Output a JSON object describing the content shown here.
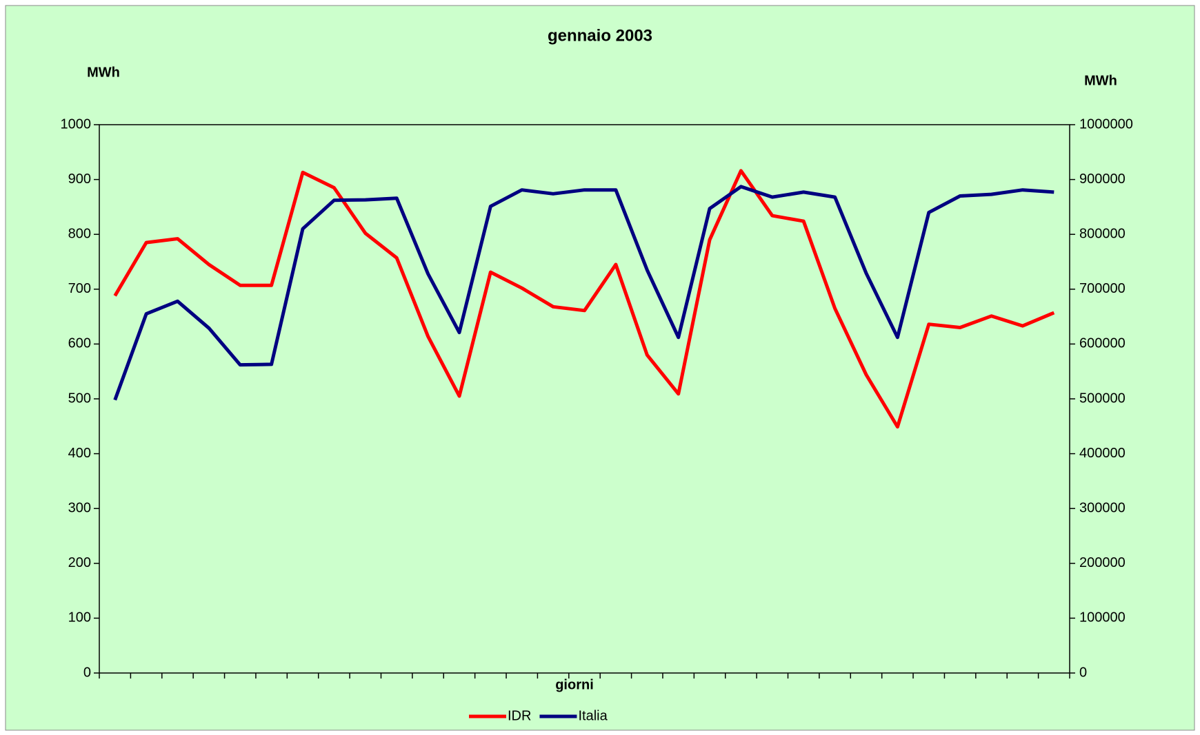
{
  "chart_data": {
    "type": "line",
    "title": "gennaio 2003",
    "ylabel": "MWh",
    "y2label": "MWh",
    "xlabel": "giorni",
    "categories": [
      null,
      null,
      null,
      null,
      null,
      null,
      null,
      null,
      null,
      null,
      null,
      null,
      null,
      null,
      null,
      null,
      null,
      null,
      null,
      null,
      null,
      null,
      null,
      null,
      null,
      null,
      null,
      null,
      null,
      null,
      null
    ],
    "series": [
      {
        "name": "IDR",
        "color": "#ff0000",
        "values": [
          688,
          785,
          792,
          745,
          707,
          707,
          913,
          885,
          802,
          757,
          614,
          505,
          731,
          702,
          668,
          661,
          745,
          580,
          509,
          790,
          916,
          834,
          824,
          665,
          544,
          449,
          636,
          630,
          651,
          633,
          657
        ]
      },
      {
        "name": "Italia",
        "color": "#000080",
        "axis": "y2",
        "values": [
          498000,
          655000,
          678000,
          629000,
          562000,
          563000,
          810000,
          862000,
          863000,
          866000,
          728000,
          621000,
          851000,
          881000,
          874000,
          881000,
          881000,
          735000,
          612000,
          847000,
          887000,
          868000,
          877000,
          868000,
          729000,
          612000,
          840000,
          870000,
          873000,
          881000,
          877000
        ]
      }
    ],
    "ylim": [
      0,
      1000
    ],
    "yticks": [
      0,
      100,
      200,
      300,
      400,
      500,
      600,
      700,
      800,
      900,
      1000
    ],
    "y2lim": [
      0,
      1000000
    ],
    "y2ticks": [
      0,
      100000,
      200000,
      300000,
      400000,
      500000,
      600000,
      700000,
      800000,
      900000,
      1000000
    ],
    "legend": "bottom"
  }
}
